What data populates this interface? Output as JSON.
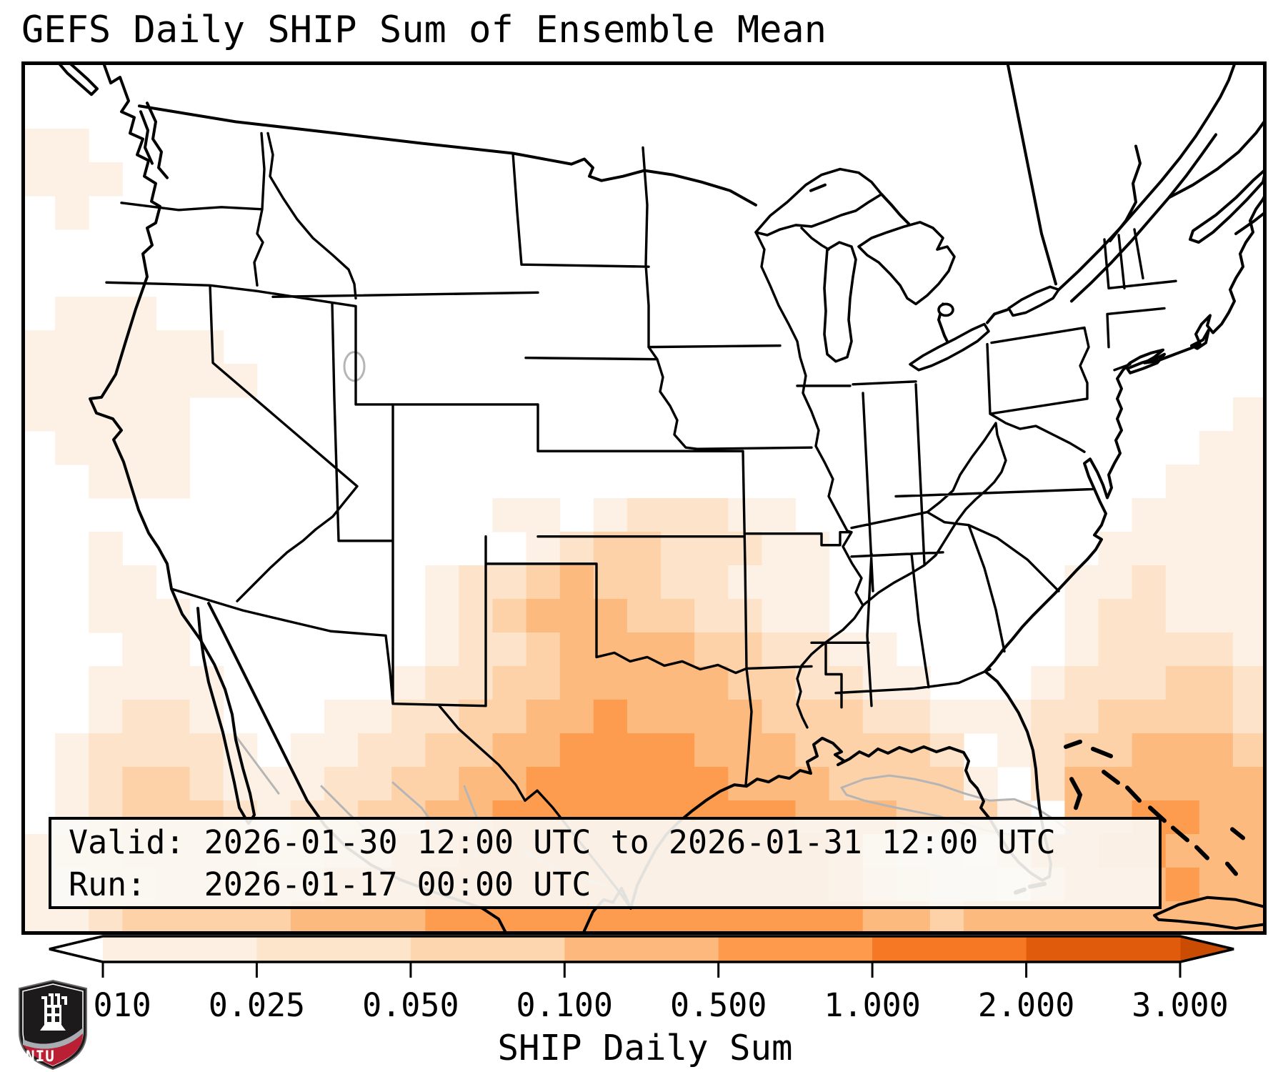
{
  "title": "GEFS Daily SHIP Sum of Ensemble Mean",
  "info_box": {
    "valid_line": "Valid: 2026-01-30 12:00 UTC to 2026-01-31 12:00 UTC",
    "run_line": "Run:   2026-01-17 00:00 UTC"
  },
  "colorbar": {
    "label": "SHIP Daily Sum",
    "ticks": [
      "0.010",
      "0.025",
      "0.050",
      "0.100",
      "0.500",
      "1.000",
      "2.000",
      "3.000"
    ],
    "segment_colors": [
      "#fdf0e2",
      "#fde5cc",
      "#fdd5ae",
      "#fdb97d",
      "#fd9a4c",
      "#f67824",
      "#e05c0c"
    ],
    "under_color": "#ffffff",
    "over_color": "#c94c02",
    "outline_color": "#000000"
  },
  "map": {
    "background": "#ffffff",
    "border_color": "#000000",
    "coast_color": "#000000",
    "minor_line_color": "#b5b5b5",
    "level_colors": [
      "",
      "#fdf1e5",
      "#fde3c9",
      "#fdd2a9",
      "#fdba7f",
      "#fd9c4f"
    ],
    "grid_cols": 37,
    "grid_rows": 26,
    "grid_levels": [
      "0000000000000000000000000000000000000",
      "0000000000000000000000000000000000000",
      "1100000000000000000000000000000000000",
      "1110000000000000000000000000000000000",
      "0100000000000000000000000000000000000",
      "0000000000000000000000000000000000000",
      "0000000000000000000000000000000000000",
      "0111000000000000000000000000000000000",
      "1111110000000000000000000000000000000",
      "1111111000000000000000000000000000000",
      "1111100000000000000000000000000000001",
      "0111100000000000000000000000000000011",
      "0011100000000000000000000000000000111",
      "0000000000000011012221100000000001111",
      "0010000000000001233222110000000011111",
      "0011000000001223433221110000000112111",
      "0011100000001234443322110000000122111",
      "0001100000001223444433221100000122221",
      "0011110000012233444443322110001222332",
      "0012210001122334454444333221112233332",
      "0122221011223344555544433332012334443",
      "0123321112233445555554443333102444444",
      "0123332122334455555555544433310445544",
      "1223333223344555555555554211024455444",
      "1122333334445555555555554321103444544",
      "1123333344445555555555555443444444444"
    ]
  },
  "logo": {
    "text": "NIU",
    "shield_color": "#1c1a1b",
    "band_color": "#ba1f33",
    "accent_color": "#a7adb2"
  }
}
